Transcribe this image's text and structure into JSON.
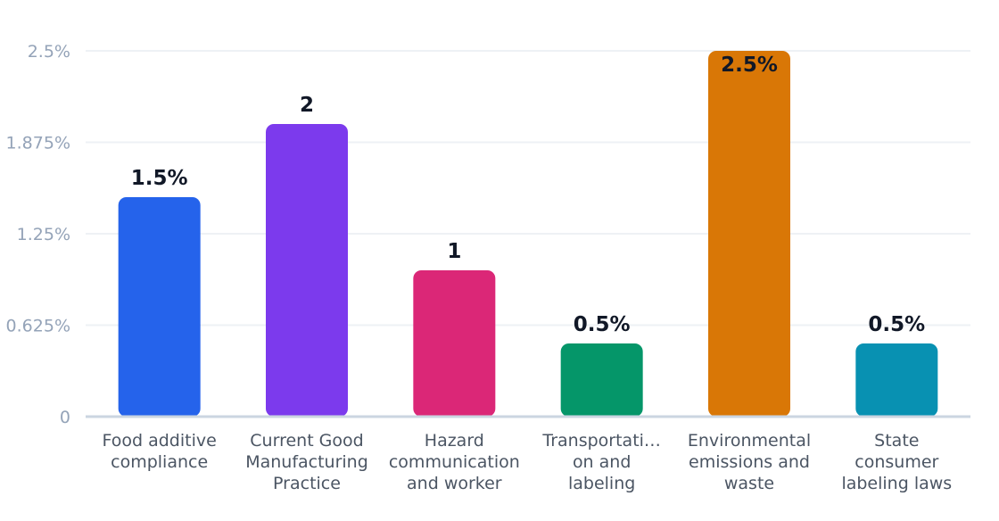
{
  "chart_data": {
    "type": "bar",
    "title": "",
    "xlabel": "",
    "ylabel": "",
    "ylim": [
      0,
      2.5
    ],
    "y_ticks": [
      "0",
      "0.625%",
      "1.25%",
      "1.875%",
      "2.5%"
    ],
    "y_tick_values": [
      0,
      0.625,
      1.25,
      1.875,
      2.5
    ],
    "grid": true,
    "categories": [
      [
        "Food additive",
        "compliance"
      ],
      [
        "Current Good",
        "Manufacturing",
        "Practice"
      ],
      [
        "Hazard",
        "communication",
        "and worker"
      ],
      [
        "Transportati…",
        "on and",
        "labeling"
      ],
      [
        "Environmental",
        "emissions and",
        "waste"
      ],
      [
        "State",
        "consumer",
        "labeling laws"
      ]
    ],
    "values": [
      1.5,
      2,
      1,
      0.5,
      2.5,
      0.5
    ],
    "data_labels": [
      "1.5%",
      "2",
      "1",
      "0.5%",
      "2.5%",
      "0.5%"
    ],
    "colors": [
      "#2563eb",
      "#7c3aed",
      "#db2777",
      "#059669",
      "#d97706",
      "#0891b2"
    ]
  }
}
